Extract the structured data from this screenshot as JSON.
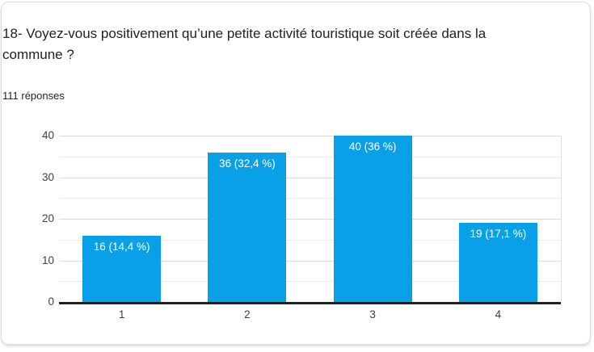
{
  "question": {
    "title": "18- Voyez-vous positivement qu’une petite activité touristique soit créée dans la commune ?",
    "responses_count": "111 réponses"
  },
  "chart_data": {
    "type": "bar",
    "title": "18- Voyez-vous positivement qu’une petite activité touristique soit créée dans la commune ?",
    "subtitle": "111 réponses",
    "total_responses": 111,
    "categories": [
      "1",
      "2",
      "3",
      "4"
    ],
    "values": [
      16,
      36,
      40,
      19
    ],
    "percentages": [
      14.4,
      32.4,
      36,
      17.1
    ],
    "bar_labels": [
      "16 (14,4 %)",
      "36 (32,4 %)",
      "40 (36 %)",
      "19 (17,1 %)"
    ],
    "xlabel": "",
    "ylabel": "",
    "ylim": [
      0,
      40
    ],
    "yticks": [
      0,
      10,
      20,
      30,
      40
    ],
    "minor_grid_step": 5,
    "grid": true,
    "legend": "none",
    "bar_color": "#0aa0e8"
  }
}
